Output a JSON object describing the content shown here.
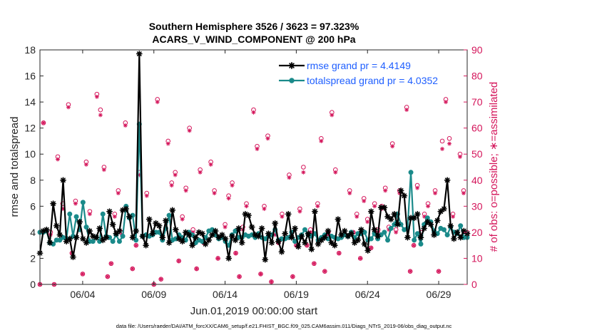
{
  "chart_data": {
    "type": "line",
    "title": [
      "Southern Hemisphere 3526 / 3623 = 97.323%",
      "ACARS_V_WIND_COMPONENT @ 200 hPa"
    ],
    "xlabel": "Jun.01,2019 00:00:00 start",
    "ylabel": "rmse and totalspread",
    "y2label": "# of obs: o=possible; ∗=assimilated",
    "xlim": [
      0,
      30
    ],
    "ylim": [
      0,
      18
    ],
    "y2lim": [
      0,
      90
    ],
    "xticks": [
      3,
      8,
      13,
      18,
      23,
      28
    ],
    "xticklabels": [
      "06/04",
      "06/09",
      "06/14",
      "06/19",
      "06/24",
      "06/29"
    ],
    "yticks": [
      0,
      2,
      4,
      6,
      8,
      10,
      12,
      14,
      16,
      18
    ],
    "y2ticks": [
      0,
      10,
      20,
      30,
      40,
      50,
      60,
      70,
      80,
      90
    ],
    "colors": {
      "rmse": "#000000",
      "spread": "#1a8a8a",
      "obs": "#d4145a",
      "legend_text": "#1f5fff"
    },
    "series": [
      {
        "name": "rmse grand pr = 4.4149",
        "key": "rmse",
        "marker": "asterisk",
        "values": [
          2.4,
          4.1,
          4.2,
          3.2,
          6.2,
          4.5,
          3.8,
          8.0,
          3.3,
          3.5,
          2.1,
          3.6,
          4.8,
          3.5,
          3.2,
          4.1,
          3.7,
          3.6,
          4.3,
          3.4,
          3.6,
          5.6,
          4.6,
          3.9,
          4.1,
          5.7,
          5.8,
          5.2,
          3.6,
          4.1,
          17.7,
          3.7,
          3.0,
          5.0,
          3.9,
          4.7,
          4.5,
          3.6,
          4.9,
          3.2,
          5.7,
          4.2,
          3.5,
          3.3,
          4.0,
          3.8,
          3.0,
          3.6,
          4.0,
          3.9,
          3.1,
          3.4,
          3.8,
          4.1,
          3.6,
          3.8,
          3.5,
          2.0,
          3.7,
          3.4,
          4.3,
          3.2,
          5.4,
          5.3,
          4.4,
          3.8,
          3.7,
          4.3,
          1.9,
          3.9,
          3.2,
          4.7,
          3.3,
          2.5,
          3.9,
          5.4,
          3.6,
          4.3,
          2.9,
          3.7,
          3.2,
          3.9,
          2.7,
          5.6,
          3.1,
          3.4,
          3.6,
          4.1,
          3.2,
          3.0,
          5.0,
          3.8,
          4.1,
          3.7,
          3.9,
          3.2,
          3.4,
          4.2,
          3.1,
          2.6,
          5.6,
          4.2,
          3.7,
          5.9,
          5.9,
          5.2,
          5.0,
          5.4,
          4.6,
          7.2,
          6.8,
          3.6,
          5.1,
          5.1,
          5.4,
          3.6,
          4.3,
          4.8,
          4.6,
          3.8,
          4.9,
          5.6,
          5.8,
          8.0,
          4.5,
          3.5,
          4.0,
          3.6,
          4.1,
          3.9
        ],
        "point_keys": []
      },
      {
        "name": "totalspread grand pr = 4.0352",
        "key": "spread",
        "marker": "circle",
        "values": [
          4.0,
          4.0,
          4.1,
          3.2,
          3.1,
          3.4,
          3.4,
          3.6,
          3.5,
          5.4,
          3.7,
          5.2,
          4.2,
          6.3,
          4.4,
          3.3,
          3.3,
          3.6,
          3.3,
          5.4,
          3.7,
          3.6,
          3.3,
          3.8,
          3.3,
          3.7,
          6.0,
          5.1,
          5.3,
          3.4,
          12.3,
          3.7,
          3.8,
          3.7,
          3.8,
          4.0,
          4.0,
          3.4,
          4.3,
          5.3,
          3.4,
          3.5,
          3.8,
          3.6,
          3.4,
          4.0,
          3.8,
          3.2,
          3.4,
          3.3,
          3.6,
          4.1,
          4.2,
          3.8,
          3.5,
          3.6,
          3.3,
          3.0,
          3.8,
          4.1,
          3.6,
          3.6,
          3.8,
          3.7,
          3.8,
          3.6,
          3.9,
          3.6,
          3.5,
          3.7,
          3.8,
          4.2,
          3.4,
          3.5,
          3.5,
          3.6,
          4.0,
          3.3,
          3.6,
          3.8,
          4.2,
          3.8,
          3.7,
          3.9,
          3.4,
          3.6,
          3.8,
          3.5,
          3.7,
          3.6,
          3.5,
          3.6,
          3.8,
          3.7,
          4.0,
          3.6,
          3.9,
          3.9,
          4.0,
          3.4,
          3.5,
          3.9,
          3.5,
          3.8,
          4.0,
          3.4,
          4.3,
          4.6,
          5.4,
          4.6,
          4.2,
          4.3,
          8.6,
          3.4,
          3.9,
          3.1,
          4.6,
          5.1,
          4.8,
          4.1,
          3.9,
          4.3,
          4.2,
          3.8,
          4.4,
          4.0,
          3.9,
          4.5,
          3.6,
          3.6
        ],
        "point_keys": []
      }
    ],
    "legend": {
      "position": "top-right",
      "entries": [
        "rmse grand pr = 4.4149",
        "totalspread grand pr = 4.0352"
      ]
    },
    "obs_possible": [
      [
        0.0,
        0
      ],
      [
        0.25,
        62
      ],
      [
        0.75,
        20
      ],
      [
        1.0,
        0
      ],
      [
        1.25,
        49
      ],
      [
        1.6,
        31
      ],
      [
        2.0,
        69
      ],
      [
        2.25,
        12
      ],
      [
        2.5,
        32
      ],
      [
        3.0,
        4
      ],
      [
        3.25,
        47
      ],
      [
        3.5,
        28
      ],
      [
        4.0,
        73
      ],
      [
        4.25,
        67
      ],
      [
        4.5,
        45
      ],
      [
        4.75,
        3
      ],
      [
        5.0,
        8
      ],
      [
        5.25,
        27
      ],
      [
        5.5,
        36
      ],
      [
        5.75,
        20
      ],
      [
        6.0,
        62
      ],
      [
        6.5,
        6
      ],
      [
        6.75,
        15
      ],
      [
        7.0,
        43
      ],
      [
        7.5,
        35
      ],
      [
        8.0,
        0
      ],
      [
        8.25,
        71
      ],
      [
        8.5,
        2
      ],
      [
        9.0,
        55
      ],
      [
        9.25,
        39
      ],
      [
        9.5,
        43
      ],
      [
        9.75,
        9
      ],
      [
        10.0,
        26
      ],
      [
        10.25,
        37
      ],
      [
        10.5,
        60
      ],
      [
        10.75,
        21
      ],
      [
        11.0,
        6
      ],
      [
        11.25,
        44
      ],
      [
        11.5,
        16
      ],
      [
        12.0,
        47
      ],
      [
        12.25,
        36
      ],
      [
        12.5,
        10
      ],
      [
        13.0,
        23
      ],
      [
        13.25,
        34
      ],
      [
        13.5,
        39
      ],
      [
        13.75,
        12
      ],
      [
        14.0,
        3
      ],
      [
        14.25,
        22
      ],
      [
        14.5,
        31
      ],
      [
        15.0,
        67
      ],
      [
        15.25,
        53
      ],
      [
        15.5,
        4
      ],
      [
        15.75,
        30
      ],
      [
        16.0,
        57
      ],
      [
        16.25,
        1
      ],
      [
        16.5,
        20
      ],
      [
        16.75,
        16
      ],
      [
        17.0,
        27
      ],
      [
        17.5,
        42
      ],
      [
        17.75,
        3
      ],
      [
        18.0,
        15
      ],
      [
        18.25,
        29
      ],
      [
        18.5,
        45
      ],
      [
        18.75,
        15
      ],
      [
        19.0,
        21
      ],
      [
        19.25,
        8
      ],
      [
        19.5,
        31
      ],
      [
        19.75,
        56
      ],
      [
        20.0,
        5
      ],
      [
        20.25,
        20
      ],
      [
        20.5,
        66
      ],
      [
        20.75,
        44
      ],
      [
        21.0,
        12
      ],
      [
        21.5,
        81
      ],
      [
        21.75,
        36
      ],
      [
        22.0,
        20
      ],
      [
        22.25,
        27
      ],
      [
        22.5,
        10
      ],
      [
        22.75,
        33
      ],
      [
        23.0,
        25
      ],
      [
        23.25,
        14
      ],
      [
        23.5,
        31
      ],
      [
        23.75,
        21
      ],
      [
        24.0,
        30
      ],
      [
        24.25,
        37
      ],
      [
        24.5,
        22
      ],
      [
        24.75,
        54
      ],
      [
        25.0,
        21
      ],
      [
        25.25,
        36
      ],
      [
        25.75,
        68
      ],
      [
        26.0,
        5
      ],
      [
        26.25,
        15
      ],
      [
        26.5,
        38
      ],
      [
        26.75,
        20
      ],
      [
        27.0,
        27
      ],
      [
        27.25,
        31
      ],
      [
        27.75,
        36
      ],
      [
        28.0,
        5
      ],
      [
        28.25,
        55
      ],
      [
        28.5,
        71
      ],
      [
        28.75,
        56
      ],
      [
        29.0,
        27
      ],
      [
        29.5,
        50
      ],
      [
        29.75,
        36
      ],
      [
        30.0,
        20
      ]
    ],
    "obs_assimilated": [
      [
        0.0,
        0
      ],
      [
        0.25,
        62
      ],
      [
        0.75,
        19
      ],
      [
        1.0,
        0
      ],
      [
        1.25,
        48
      ],
      [
        1.6,
        29
      ],
      [
        2.0,
        68
      ],
      [
        2.25,
        12
      ],
      [
        2.5,
        31
      ],
      [
        3.0,
        4
      ],
      [
        3.25,
        46
      ],
      [
        3.5,
        27
      ],
      [
        4.0,
        72
      ],
      [
        4.25,
        65
      ],
      [
        4.5,
        44
      ],
      [
        4.75,
        3
      ],
      [
        5.0,
        8
      ],
      [
        5.25,
        26
      ],
      [
        5.5,
        35
      ],
      [
        5.75,
        19
      ],
      [
        6.0,
        61
      ],
      [
        6.5,
        6
      ],
      [
        6.75,
        15
      ],
      [
        7.0,
        42
      ],
      [
        7.5,
        34
      ],
      [
        8.0,
        0
      ],
      [
        8.25,
        70
      ],
      [
        8.5,
        2
      ],
      [
        9.0,
        54
      ],
      [
        9.25,
        38
      ],
      [
        9.5,
        42
      ],
      [
        9.75,
        9
      ],
      [
        10.0,
        25
      ],
      [
        10.25,
        36
      ],
      [
        10.5,
        59
      ],
      [
        10.75,
        20
      ],
      [
        11.0,
        6
      ],
      [
        11.25,
        43
      ],
      [
        11.5,
        16
      ],
      [
        12.0,
        46
      ],
      [
        12.25,
        35
      ],
      [
        12.5,
        10
      ],
      [
        13.0,
        22
      ],
      [
        13.25,
        33
      ],
      [
        13.5,
        38
      ],
      [
        13.75,
        12
      ],
      [
        14.0,
        3
      ],
      [
        14.25,
        21
      ],
      [
        14.5,
        30
      ],
      [
        15.0,
        66
      ],
      [
        15.25,
        52
      ],
      [
        15.5,
        4
      ],
      [
        15.75,
        29
      ],
      [
        16.0,
        56
      ],
      [
        16.25,
        1
      ],
      [
        16.5,
        19
      ],
      [
        16.75,
        16
      ],
      [
        17.0,
        26
      ],
      [
        17.5,
        41
      ],
      [
        17.75,
        3
      ],
      [
        18.0,
        15
      ],
      [
        18.25,
        28
      ],
      [
        18.5,
        43
      ],
      [
        18.75,
        15
      ],
      [
        19.0,
        20
      ],
      [
        19.25,
        8
      ],
      [
        19.5,
        30
      ],
      [
        19.75,
        55
      ],
      [
        20.0,
        5
      ],
      [
        20.25,
        19
      ],
      [
        20.5,
        65
      ],
      [
        20.75,
        43
      ],
      [
        21.0,
        12
      ],
      [
        21.5,
        80
      ],
      [
        21.75,
        35
      ],
      [
        22.0,
        20
      ],
      [
        22.25,
        26
      ],
      [
        22.5,
        10
      ],
      [
        22.75,
        32
      ],
      [
        23.0,
        24
      ],
      [
        23.25,
        14
      ],
      [
        23.5,
        30
      ],
      [
        23.75,
        20
      ],
      [
        24.0,
        29
      ],
      [
        24.25,
        36
      ],
      [
        24.5,
        21
      ],
      [
        24.75,
        53
      ],
      [
        25.0,
        20
      ],
      [
        25.25,
        35
      ],
      [
        25.75,
        67
      ],
      [
        26.0,
        5
      ],
      [
        26.25,
        15
      ],
      [
        26.5,
        37
      ],
      [
        26.75,
        19
      ],
      [
        27.0,
        26
      ],
      [
        27.25,
        30
      ],
      [
        27.75,
        35
      ],
      [
        28.0,
        5
      ],
      [
        28.25,
        52
      ],
      [
        28.5,
        70
      ],
      [
        28.75,
        54
      ],
      [
        29.0,
        26
      ],
      [
        29.5,
        49
      ],
      [
        29.75,
        35
      ],
      [
        30.0,
        19
      ]
    ],
    "footer": "data file: /Users/raeder/DAI/ATM_forcXX/CAM6_setup/f.e21.FHIST_BGC.f09_025.CAM6assim.011/Diags_NTrS_2019-06/obs_diag_output.nc"
  }
}
